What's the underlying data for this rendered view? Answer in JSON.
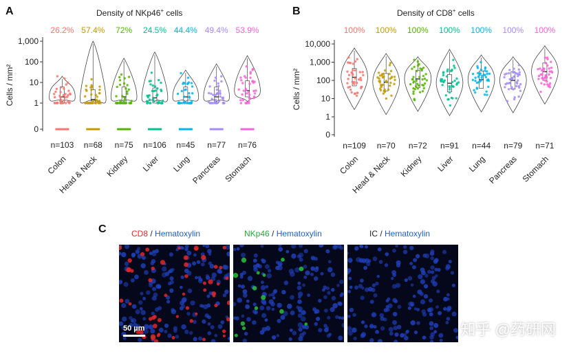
{
  "panels": {
    "A": {
      "letter": "A",
      "title_pre": "Density of NKp46",
      "title_sup": "+",
      "title_post": " cells"
    },
    "B": {
      "letter": "B",
      "title_pre": "Density of CD8",
      "title_sup": "+",
      "title_post": " cells"
    },
    "C": {
      "letter": "C"
    }
  },
  "chart_data": [
    {
      "type": "violin",
      "title": "Density of NKp46+ cells",
      "ylabel": "Cells / mm²",
      "yscale": "log",
      "ytick_labels": [
        "0",
        "1",
        "10",
        "100",
        "1,000"
      ],
      "ytick_values": [
        0,
        1,
        10,
        100,
        1000
      ],
      "ylim": [
        0,
        1000
      ],
      "categories": [
        "Colon",
        "Head & Neck",
        "Kidney",
        "Liver",
        "Lung",
        "Pancreas",
        "Stomach"
      ],
      "percent_labels": [
        "26.2%",
        "57.4%",
        "72%",
        "24.5%",
        "44.4%",
        "49.4%",
        "53.9%"
      ],
      "n_labels": [
        "n=103",
        "n=68",
        "n=75",
        "n=106",
        "n=45",
        "n=77",
        "n=76"
      ],
      "medians": [
        2,
        1.5,
        2,
        1.8,
        2,
        2,
        4
      ],
      "maxima": [
        20,
        1000,
        150,
        300,
        40,
        80,
        200
      ],
      "colors": [
        "#f8766d",
        "#c49a00",
        "#53b400",
        "#00c094",
        "#00b6eb",
        "#a58aff",
        "#fb61d7"
      ]
    },
    {
      "type": "violin",
      "title": "Density of CD8+ cells",
      "ylabel": "Cells / mm²",
      "yscale": "log",
      "ytick_labels": [
        "0",
        "1",
        "10",
        "100",
        "1,000",
        "10,000"
      ],
      "ytick_values": [
        0,
        1,
        10,
        100,
        1000,
        10000
      ],
      "ylim": [
        0,
        10000
      ],
      "categories": [
        "Colon",
        "Head & Neck",
        "Kidney",
        "Liver",
        "Lung",
        "Pancreas",
        "Stomach"
      ],
      "percent_labels": [
        "100%",
        "100%",
        "100%",
        "100%",
        "100%",
        "100%",
        "100%"
      ],
      "n_labels": [
        "n=109",
        "n=70",
        "n=72",
        "n=91",
        "n=44",
        "n=79",
        "n=71"
      ],
      "medians": [
        150,
        80,
        120,
        70,
        110,
        100,
        300
      ],
      "maxima": [
        6000,
        3000,
        2000,
        5000,
        2500,
        2000,
        8000
      ],
      "colors": [
        "#f8766d",
        "#c49a00",
        "#53b400",
        "#00c094",
        "#00b6eb",
        "#a58aff",
        "#fb61d7"
      ]
    }
  ],
  "figure_c": {
    "captions": [
      {
        "stain": "CD8",
        "sep": " / ",
        "counter": "Hematoxylin",
        "stain_color": "#e8262a"
      },
      {
        "stain": "NKp46",
        "sep": " / ",
        "counter": "Hematoxylin",
        "stain_color": "#24a83a"
      },
      {
        "stain": "IC",
        "sep": " / ",
        "counter": "Hematoxylin",
        "stain_color": "#222222"
      }
    ],
    "counter_color": "#1f5fc4",
    "scale_label": "50 µm"
  },
  "watermark": "知乎 @药研网"
}
